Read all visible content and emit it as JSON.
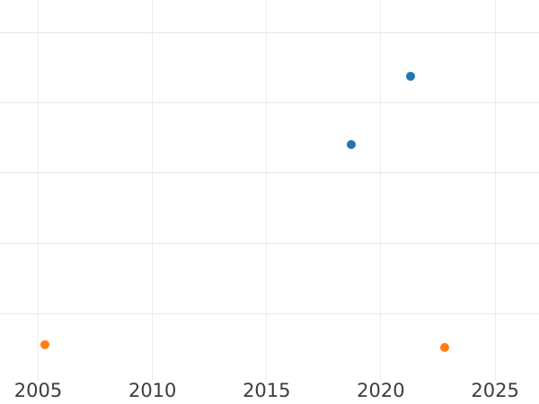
{
  "chart_data": {
    "type": "scatter",
    "title": "",
    "xlabel": "",
    "ylabel": "",
    "grid": true,
    "x_tick_labels": [
      "2005",
      "2010",
      "2015",
      "2020",
      "2025"
    ],
    "x_tick_years": [
      2005,
      2010,
      2015,
      2020,
      2025
    ],
    "x_range_years": [
      2003.3,
      2026.9
    ],
    "y_axis_note": "no y-axis tick labels visible; y values given in horizontal-gridline units measured up from the bottom gridline (gridlines at units 0-5, lines drawn at 1-5)",
    "y_gridline_units_drawn": [
      1,
      2,
      3,
      4,
      5
    ],
    "series": [
      {
        "name": "blue-series",
        "color": "#1f77b4",
        "points": [
          {
            "x": 2018.7,
            "y": 3.41
          },
          {
            "x": 2021.3,
            "y": 4.38
          }
        ]
      },
      {
        "name": "orange-series",
        "color": "#ff7f0e",
        "points": [
          {
            "x": 2005.3,
            "y": 0.56
          },
          {
            "x": 2022.8,
            "y": 0.52
          }
        ]
      }
    ]
  }
}
